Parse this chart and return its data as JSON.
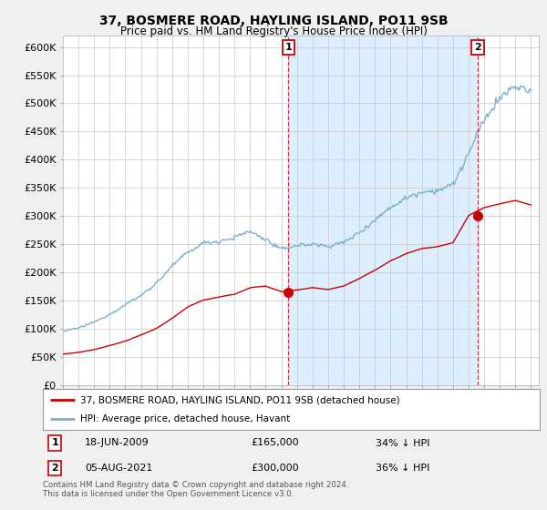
{
  "title": "37, BOSMERE ROAD, HAYLING ISLAND, PO11 9SB",
  "subtitle": "Price paid vs. HM Land Registry's House Price Index (HPI)",
  "legend_label_red": "37, BOSMERE ROAD, HAYLING ISLAND, PO11 9SB (detached house)",
  "legend_label_blue": "HPI: Average price, detached house, Havant",
  "annotation1_date": "18-JUN-2009",
  "annotation1_price": "£165,000",
  "annotation1_hpi": "34% ↓ HPI",
  "annotation2_date": "05-AUG-2021",
  "annotation2_price": "£300,000",
  "annotation2_hpi": "36% ↓ HPI",
  "footnote1": "Contains HM Land Registry data © Crown copyright and database right 2024.",
  "footnote2": "This data is licensed under the Open Government Licence v3.0.",
  "red_color": "#cc0000",
  "blue_color": "#7ab0d4",
  "shade_color": "#ddeeff",
  "bg_color": "#f0f0f0",
  "plot_bg": "#ffffff",
  "ylim_min": 0,
  "ylim_max": 620000,
  "yticks": [
    0,
    50000,
    100000,
    150000,
    200000,
    250000,
    300000,
    350000,
    400000,
    450000,
    500000,
    550000,
    600000
  ],
  "ytick_labels": [
    "£0",
    "£50K",
    "£100K",
    "£150K",
    "£200K",
    "£250K",
    "£300K",
    "£350K",
    "£400K",
    "£450K",
    "£500K",
    "£550K",
    "£600K"
  ],
  "sale1_x": 2009.46,
  "sale1_y": 165000,
  "sale2_x": 2021.59,
  "sale2_y": 300000,
  "xmin": 1995.0,
  "xmax": 2025.5,
  "hpi_year_points": [
    1995,
    1996,
    1997,
    1998,
    1999,
    2000,
    2001,
    2002,
    2003,
    2004,
    2005,
    2006,
    2007,
    2008,
    2009,
    2010,
    2011,
    2012,
    2013,
    2014,
    2015,
    2016,
    2017,
    2018,
    2019,
    2020,
    2021,
    2022,
    2023,
    2024,
    2025
  ],
  "hpi_base_vals": [
    95000,
    102000,
    112000,
    125000,
    140000,
    158000,
    180000,
    210000,
    235000,
    252000,
    255000,
    262000,
    272000,
    258000,
    240000,
    248000,
    250000,
    245000,
    252000,
    270000,
    292000,
    315000,
    332000,
    342000,
    345000,
    355000,
    410000,
    470000,
    510000,
    530000,
    520000
  ],
  "red_year_points": [
    1995,
    1996,
    1997,
    1998,
    1999,
    2000,
    2001,
    2002,
    2003,
    2004,
    2005,
    2006,
    2007,
    2008,
    2009,
    2010,
    2011,
    2012,
    2013,
    2014,
    2015,
    2016,
    2017,
    2018,
    2019,
    2020,
    2021,
    2022,
    2023,
    2024,
    2025
  ],
  "red_base_vals": [
    55000,
    58000,
    63000,
    70000,
    78000,
    88000,
    100000,
    118000,
    138000,
    150000,
    155000,
    160000,
    172000,
    175000,
    165000,
    168000,
    172000,
    168000,
    175000,
    188000,
    203000,
    220000,
    233000,
    242000,
    245000,
    252000,
    300000,
    315000,
    322000,
    328000,
    320000
  ]
}
